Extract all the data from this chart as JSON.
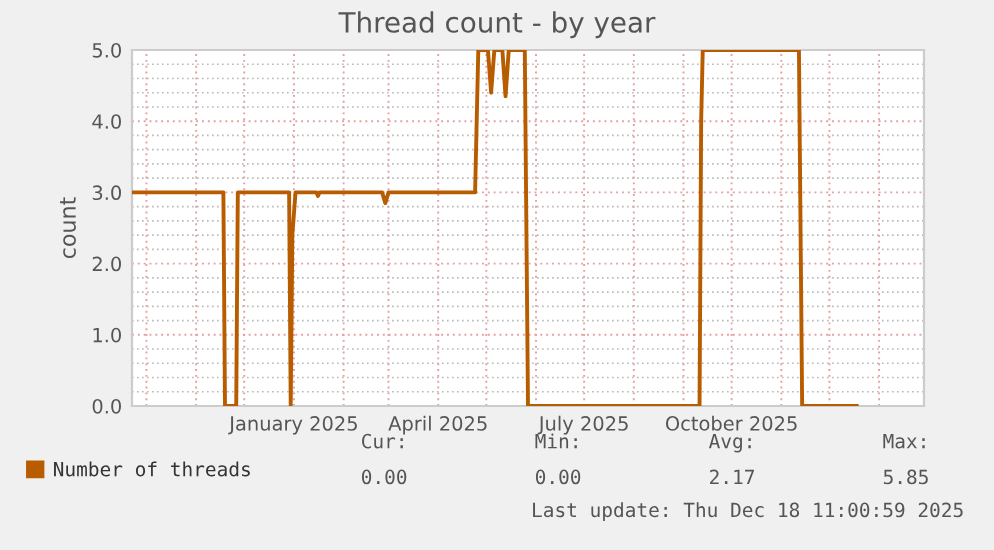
{
  "chart_data": {
    "type": "line",
    "title": "Thread count - by year",
    "ylabel": "count",
    "x": [
      "2024-09-22",
      "2024-11-18",
      "2024-11-19",
      "2024-11-26",
      "2024-11-27",
      "2024-12-29",
      "2024-12-30",
      "2024-12-31",
      "2025-01-02",
      "2025-01-15",
      "2025-01-16",
      "2025-01-17",
      "2025-02-25",
      "2025-02-27",
      "2025-03-01",
      "2025-04-24",
      "2025-04-26",
      "2025-05-02",
      "2025-05-04",
      "2025-05-06",
      "2025-05-11",
      "2025-05-13",
      "2025-05-15",
      "2025-05-25",
      "2025-05-27",
      "2025-09-11",
      "2025-09-12",
      "2025-09-13",
      "2025-11-12",
      "2025-11-14",
      "2025-12-18"
    ],
    "series": [
      {
        "name": "Number of threads",
        "color": "#b85c00",
        "values": [
          3,
          3,
          0,
          0,
          3,
          3,
          0,
          2.4,
          3,
          3,
          2.95,
          3,
          3,
          2.85,
          3,
          3,
          5,
          5,
          4.4,
          5,
          5,
          4.35,
          5,
          5,
          0,
          0,
          4,
          5,
          5,
          0,
          0
        ]
      }
    ],
    "xlim": [
      "2024-09-22",
      "2026-01-29"
    ],
    "xticks": [
      {
        "value": "2025-01-01",
        "label": "January 2025"
      },
      {
        "value": "2025-04-01",
        "label": "April 2025"
      },
      {
        "value": "2025-07-01",
        "label": "July 2025"
      },
      {
        "value": "2025-10-01",
        "label": "October 2025"
      }
    ],
    "ylim": [
      0,
      5
    ],
    "yticks": [
      {
        "value": 0,
        "label": "0.0"
      },
      {
        "value": 1,
        "label": "1.0"
      },
      {
        "value": 2,
        "label": "2.0"
      },
      {
        "value": 3,
        "label": "3.0"
      },
      {
        "value": 4,
        "label": "4.0"
      },
      {
        "value": 5,
        "label": "5.0"
      }
    ],
    "grid": true,
    "legend": "bottom",
    "marker": "none",
    "line_style": "solid",
    "annotations": [
      "Cur:",
      "Min:",
      "Avg:",
      "Max:",
      "0.00",
      "0.00",
      "2.17",
      "5.85",
      "Last update: Thu Dec 18 11:00:59 2025"
    ]
  }
}
